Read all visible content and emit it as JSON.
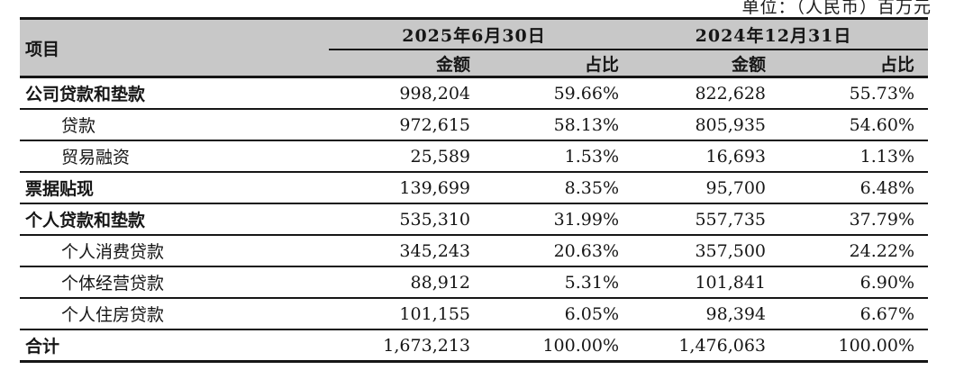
{
  "unit_label": "单位：（人民币）百万元",
  "colors": {
    "header_background": "#c8c8c8",
    "border": "#161616",
    "text": "#1c1c1c",
    "page_background": "#ffffff"
  },
  "table": {
    "item_header": "项目",
    "groups": [
      {
        "date": "2025年6月30日",
        "amount_header": "金额",
        "ratio_header": "占比"
      },
      {
        "date": "2024年12月31日",
        "amount_header": "金额",
        "ratio_header": "占比"
      }
    ],
    "rows": [
      {
        "label": "公司贷款和垫款",
        "amount_2025": "998,204",
        "ratio_2025": "59.66%",
        "amount_2024": "822,628",
        "ratio_2024": "55.73%"
      },
      {
        "label": "贷款",
        "amount_2025": "972,615",
        "ratio_2025": "58.13%",
        "amount_2024": "805,935",
        "ratio_2024": "54.60%"
      },
      {
        "label": "贸易融资",
        "amount_2025": "25,589",
        "ratio_2025": "1.53%",
        "amount_2024": "16,693",
        "ratio_2024": "1.13%"
      },
      {
        "label": "票据贴现",
        "amount_2025": "139,699",
        "ratio_2025": "8.35%",
        "amount_2024": "95,700",
        "ratio_2024": "6.48%"
      },
      {
        "label": "个人贷款和垫款",
        "amount_2025": "535,310",
        "ratio_2025": "31.99%",
        "amount_2024": "557,735",
        "ratio_2024": "37.79%"
      },
      {
        "label": "个人消费贷款",
        "amount_2025": "345,243",
        "ratio_2025": "20.63%",
        "amount_2024": "357,500",
        "ratio_2024": "24.22%"
      },
      {
        "label": "个体经营贷款",
        "amount_2025": "88,912",
        "ratio_2025": "5.31%",
        "amount_2024": "101,841",
        "ratio_2024": "6.90%"
      },
      {
        "label": "个人住房贷款",
        "amount_2025": "101,155",
        "ratio_2025": "6.05%",
        "amount_2024": "98,394",
        "ratio_2024": "6.67%"
      },
      {
        "label": "合计",
        "amount_2025": "1,673,213",
        "ratio_2025": "100.00%",
        "amount_2024": "1,476,063",
        "ratio_2024": "100.00%"
      }
    ]
  }
}
